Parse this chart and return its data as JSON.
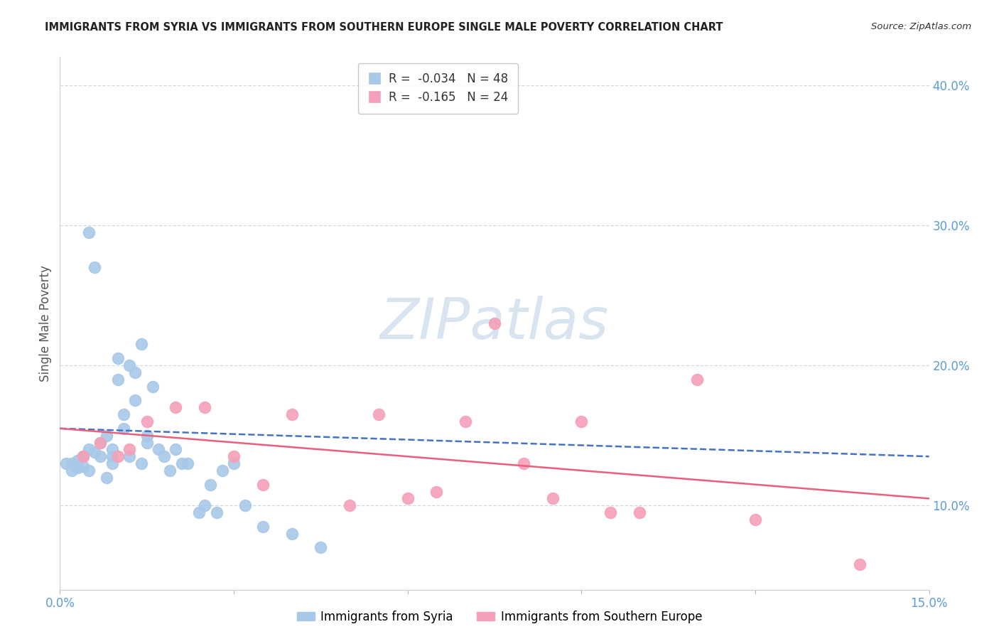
{
  "title": "IMMIGRANTS FROM SYRIA VS IMMIGRANTS FROM SOUTHERN EUROPE SINGLE MALE POVERTY CORRELATION CHART",
  "source": "Source: ZipAtlas.com",
  "ylabel": "Single Male Poverty",
  "legend_syria": "Immigrants from Syria",
  "legend_s_europe": "Immigrants from Southern Europe",
  "r_syria": -0.034,
  "n_syria": 48,
  "r_s_europe": -0.165,
  "n_s_europe": 24,
  "color_syria": "#a8c8e8",
  "color_s_europe": "#f5a0b8",
  "line_color_syria": "#4472c4",
  "line_color_s_europe": "#e8607a",
  "axis_label_color": "#5b9bd5",
  "grid_color": "#d0d8e4",
  "xmin": 0.0,
  "xmax": 0.15,
  "ymin": 0.04,
  "ymax": 0.42,
  "yticks_right": [
    0.1,
    0.2,
    0.3,
    0.4
  ],
  "ytick_labels_right": [
    "10.0%",
    "20.0%",
    "30.0%",
    "40.0%"
  ],
  "syria_x": [
    0.001,
    0.002,
    0.002,
    0.003,
    0.003,
    0.004,
    0.004,
    0.005,
    0.005,
    0.005,
    0.006,
    0.006,
    0.007,
    0.007,
    0.008,
    0.008,
    0.009,
    0.009,
    0.009,
    0.01,
    0.01,
    0.011,
    0.011,
    0.012,
    0.012,
    0.013,
    0.013,
    0.014,
    0.014,
    0.015,
    0.015,
    0.016,
    0.017,
    0.018,
    0.019,
    0.02,
    0.021,
    0.022,
    0.024,
    0.025,
    0.026,
    0.027,
    0.028,
    0.03,
    0.032,
    0.035,
    0.04,
    0.045
  ],
  "syria_y": [
    0.13,
    0.125,
    0.13,
    0.127,
    0.132,
    0.128,
    0.135,
    0.14,
    0.125,
    0.295,
    0.138,
    0.27,
    0.135,
    0.145,
    0.12,
    0.15,
    0.135,
    0.14,
    0.13,
    0.19,
    0.205,
    0.155,
    0.165,
    0.135,
    0.2,
    0.175,
    0.195,
    0.13,
    0.215,
    0.145,
    0.15,
    0.185,
    0.14,
    0.135,
    0.125,
    0.14,
    0.13,
    0.13,
    0.095,
    0.1,
    0.115,
    0.095,
    0.125,
    0.13,
    0.1,
    0.085,
    0.08,
    0.07
  ],
  "s_europe_x": [
    0.004,
    0.007,
    0.01,
    0.012,
    0.015,
    0.02,
    0.025,
    0.03,
    0.035,
    0.04,
    0.05,
    0.055,
    0.06,
    0.065,
    0.07,
    0.075,
    0.08,
    0.085,
    0.09,
    0.095,
    0.1,
    0.11,
    0.12,
    0.138
  ],
  "s_europe_y": [
    0.135,
    0.145,
    0.135,
    0.14,
    0.16,
    0.17,
    0.17,
    0.135,
    0.115,
    0.165,
    0.1,
    0.165,
    0.105,
    0.11,
    0.16,
    0.23,
    0.13,
    0.105,
    0.16,
    0.095,
    0.095,
    0.19,
    0.09,
    0.058
  ],
  "watermark": "ZIPatlas",
  "watermark_color": "#d8e4f0",
  "watermark_fontsize": 58
}
